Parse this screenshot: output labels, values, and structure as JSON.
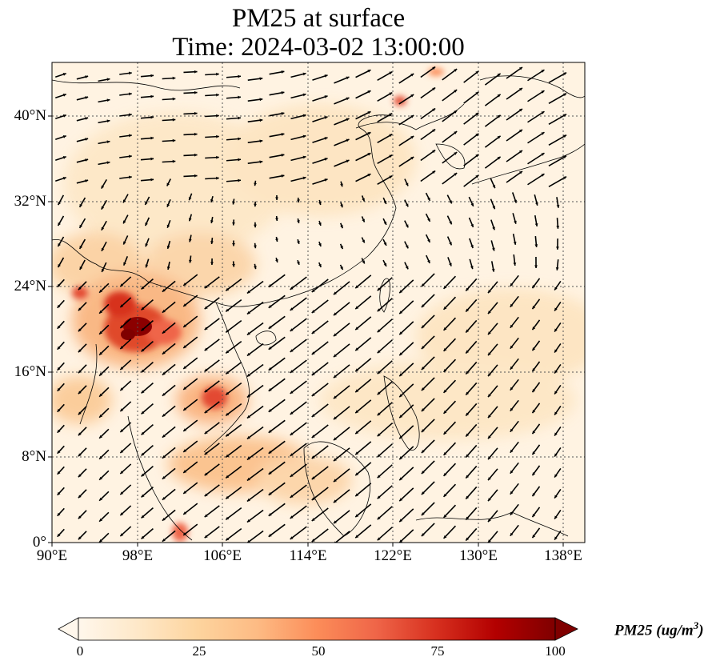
{
  "title": {
    "line1": "PM25 at surface",
    "line2": "Time: 2024-03-02 13:00:00"
  },
  "axes": {
    "lat_ticks": [
      {
        "value": 40,
        "label": "40°N"
      },
      {
        "value": 32,
        "label": "32°N"
      },
      {
        "value": 24,
        "label": "24°N"
      },
      {
        "value": 16,
        "label": "16°N"
      },
      {
        "value": 8,
        "label": "8°N"
      },
      {
        "value": 0,
        "label": "0°"
      }
    ],
    "lon_ticks": [
      {
        "value": 90,
        "label": "90°E"
      },
      {
        "value": 98,
        "label": "98°E"
      },
      {
        "value": 106,
        "label": "106°E"
      },
      {
        "value": 114,
        "label": "114°E"
      },
      {
        "value": 122,
        "label": "122°E"
      },
      {
        "value": 130,
        "label": "130°E"
      },
      {
        "value": 138,
        "label": "138°E"
      }
    ],
    "lon_range": [
      90,
      140
    ],
    "lat_range": [
      0,
      45
    ],
    "grid": "dotted"
  },
  "colorbar": {
    "label": "PM25 (ug/m",
    "label_sup": "3",
    "label_close": ")",
    "ticks": [
      {
        "value": 0,
        "label": "0"
      },
      {
        "value": 25,
        "label": "25"
      },
      {
        "value": 50,
        "label": "50"
      },
      {
        "value": 75,
        "label": "75"
      },
      {
        "value": 100,
        "label": "100"
      }
    ],
    "range": [
      0,
      100
    ],
    "extend": "both",
    "colormap": "OrRd",
    "colors": [
      "#fff7ec",
      "#fee8c8",
      "#fdd49e",
      "#fdbb84",
      "#fc8d59",
      "#ef6548",
      "#d7301f",
      "#b30000",
      "#7f0000"
    ]
  },
  "chart_data": {
    "type": "heatmap",
    "variable": "PM25",
    "level": "surface",
    "time": "2024-03-02 13:00:00",
    "units": "ug/m3",
    "hotspots": [
      {
        "lon": 98.5,
        "lat": 20,
        "value": 100
      },
      {
        "lon": 97.5,
        "lat": 21,
        "value": 85
      },
      {
        "lon": 100.5,
        "lat": 19.5,
        "value": 70
      },
      {
        "lon": 104.5,
        "lat": 13.5,
        "value": 80
      },
      {
        "lon": 92.5,
        "lat": 23.5,
        "value": 60
      },
      {
        "lon": 110.5,
        "lat": 7.5,
        "value": 45
      },
      {
        "lon": 123.5,
        "lat": 41,
        "value": 55
      },
      {
        "lon": 127,
        "lat": 43.5,
        "value": 40
      }
    ],
    "wind_vectors": true
  }
}
